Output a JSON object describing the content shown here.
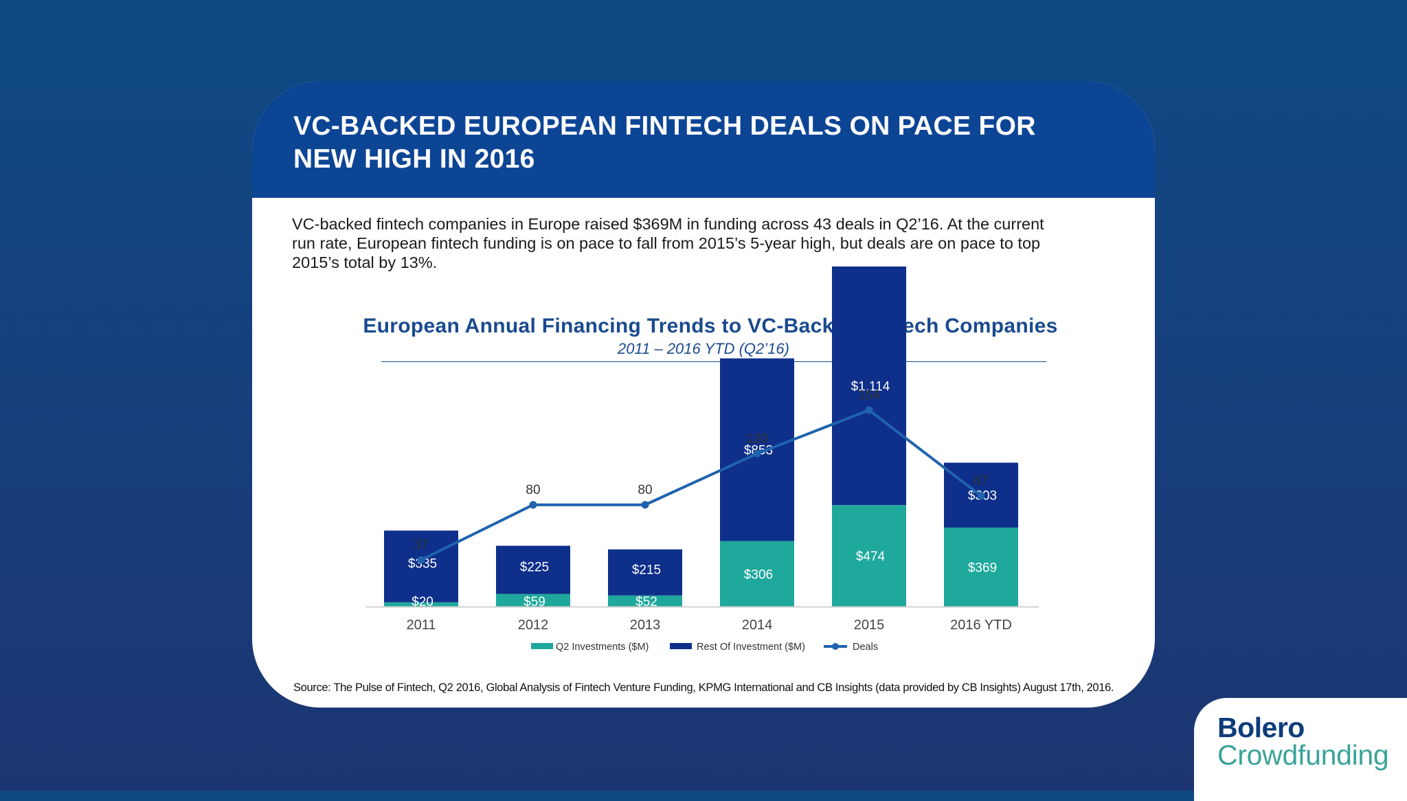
{
  "slide": {
    "title_line1": "VC-BACKED EUROPEAN FINTECH DEALS ON PACE FOR",
    "title_line2": "NEW HIGH IN 2016",
    "body_line1": "VC-backed fintech companies in Europe raised $369M in funding across 43 deals in Q2’16. At the current",
    "body_line2": "run rate, European fintech funding is on pace to fall from 2015’s 5-year high, but deals are on pace to top",
    "body_line3": "2015’s total by 13%.",
    "source": "Source: The Pulse of Fintech, Q2 2016, Global Analysis of Fintech Venture Funding, KPMG International and CB Insights (data provided by CB Insights) August 17th, 2016."
  },
  "logo": {
    "line1": "Bolero",
    "line2": "Crowdfunding"
  },
  "colors": {
    "q2": "#1fa89c",
    "rest": "#0e2f8a",
    "deals": "#1f63ad",
    "header": "#0d4595"
  },
  "chart_data": {
    "type": "bar",
    "stacked": true,
    "title": "European Annual Financing Trends to VC-Backed Fintech Companies",
    "subtitle": "2011 – 2016 YTD (Q2’16)",
    "categories": [
      "2011",
      "2012",
      "2013",
      "2014",
      "2015",
      "2016 YTD"
    ],
    "series": [
      {
        "name": "Q2 Investments ($M)",
        "values": [
          20,
          59,
          52,
          306,
          474,
          369
        ],
        "labels": [
          "$20",
          "$59",
          "$52",
          "$306",
          "$474",
          "$369"
        ]
      },
      {
        "name": "Rest Of Investment ($M)",
        "values": [
          335,
          225,
          215,
          853,
          1114,
          303
        ],
        "labels": [
          "$335",
          "$225",
          "$215",
          "$853",
          "$1,114",
          "$303"
        ]
      }
    ],
    "line_series": {
      "name": "Deals",
      "values": [
        37,
        80,
        80,
        120,
        154,
        87
      ]
    },
    "legend_position": "bottom"
  }
}
